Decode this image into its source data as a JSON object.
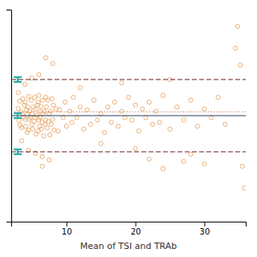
{
  "chart_data": {
    "type": "scatter",
    "xlabel": "Mean of TSI and TRAb",
    "xlim": [
      2,
      36
    ],
    "ylim": [
      -22,
      22
    ],
    "xticks": [
      10,
      20,
      30
    ],
    "yticks": [],
    "tick_labels": "x",
    "grid": false,
    "color": "#e8a86c",
    "marker": "open-circle",
    "x": [
      3.0,
      3.1,
      3.2,
      3.3,
      3.4,
      3.5,
      3.6,
      3.7,
      3.8,
      3.9,
      4.0,
      4.0,
      4.1,
      4.2,
      4.3,
      4.3,
      4.4,
      4.5,
      4.5,
      4.6,
      4.7,
      4.8,
      4.9,
      5.0,
      5.0,
      5.1,
      5.2,
      5.3,
      5.4,
      5.5,
      5.5,
      5.6,
      5.7,
      5.8,
      5.9,
      5.9,
      6.0,
      6.0,
      6.1,
      6.2,
      6.2,
      6.3,
      6.4,
      6.5,
      6.5,
      6.6,
      6.7,
      6.8,
      6.9,
      7.0,
      7.0,
      7.1,
      7.2,
      7.3,
      7.4,
      7.5,
      7.6,
      7.7,
      7.8,
      7.9,
      8.0,
      8.1,
      8.2,
      8.5,
      8.8,
      9.0,
      9.5,
      9.8,
      10.0,
      10.5,
      10.8,
      11.0,
      11.5,
      12.0,
      12.5,
      13.0,
      13.5,
      14.0,
      14.5,
      15.0,
      15.5,
      16.0,
      16.5,
      17.0,
      17.5,
      18.0,
      18.5,
      19.0,
      19.5,
      20.0,
      20.5,
      21.0,
      21.5,
      22.0,
      22.5,
      23.0,
      23.5,
      24.0,
      25.0,
      26.0,
      27.0,
      28.0,
      29.0,
      30.0,
      31.0,
      32.0,
      33.0,
      34.5,
      34.8,
      35.2,
      35.5,
      35.8,
      8.0,
      7.0,
      7.5,
      6.5,
      4.0,
      4.5,
      5.0,
      5.5,
      6.0,
      6.5,
      3.5,
      3.0,
      12.0,
      15.0,
      18.0,
      20.0,
      25.0,
      28.0,
      30.0,
      27.0,
      24.0,
      22.0
    ],
    "values": [
      1.5,
      -1.0,
      3.0,
      -2.0,
      0.8,
      -2.5,
      0.3,
      3.5,
      -0.3,
      2.2,
      -0.8,
      2.8,
      -2.2,
      1.2,
      -3.5,
      0.2,
      1.8,
      -3.0,
      4.0,
      -0.8,
      0.9,
      -0.4,
      3.2,
      -1.8,
      0.4,
      -2.8,
      1.8,
      -1.2,
      3.8,
      -0.4,
      1.4,
      -3.8,
      0.1,
      2.2,
      -3.2,
      2.8,
      -0.9,
      4.2,
      -2.2,
      0.9,
      -0.4,
      1.9,
      -2.8,
      3.2,
      -1.4,
      0.4,
      -4.2,
      0.9,
      -1.8,
      3.8,
      -0.9,
      1.8,
      -2.5,
      3.2,
      -1.2,
      0.4,
      -4.0,
      0.9,
      -1.8,
      3.5,
      -0.8,
      2.2,
      -3.0,
      1.4,
      -3.2,
      1.2,
      -0.4,
      2.8,
      -2.2,
      0.9,
      -1.4,
      3.8,
      -0.4,
      1.8,
      -2.8,
      1.2,
      -1.8,
      3.2,
      -0.9,
      0.4,
      -3.5,
      1.8,
      -1.4,
      2.8,
      -2.2,
      0.9,
      -0.4,
      3.8,
      -0.9,
      2.2,
      -3.2,
      1.4,
      -0.4,
      2.8,
      -1.8,
      0.9,
      -1.4,
      4.2,
      -2.8,
      1.8,
      -0.9,
      3.2,
      -2.2,
      1.4,
      -0.4,
      3.8,
      -1.8,
      14.0,
      18.5,
      10.5,
      -10.5,
      -15.0,
      10.8,
      12.0,
      -9.2,
      -10.5,
      6.5,
      -7.2,
      7.8,
      -7.8,
      8.5,
      -8.5,
      -5.2,
      4.8,
      5.8,
      -5.8,
      6.8,
      -6.8,
      7.5,
      -8.0,
      -10.0,
      -9.5,
      -11.0,
      -9.0
    ],
    "reference_lines": [
      {
        "value": 0.0,
        "color": "#2d3a5c",
        "line_style": "solid"
      },
      {
        "value": 0.8,
        "color": "#c8855a",
        "line_style": "dotted"
      },
      {
        "value": 7.5,
        "color": "#6b1a1a",
        "line_style": "dashed"
      },
      {
        "value": -7.5,
        "color": "#6b1a1a",
        "line_style": "dashed"
      }
    ],
    "intervals": {
      "color": "#2aadad",
      "values": [
        [
          -0.5,
          0.5
        ],
        [
          7.0,
          8.0
        ],
        [
          -8.0,
          -7.0
        ]
      ]
    }
  }
}
